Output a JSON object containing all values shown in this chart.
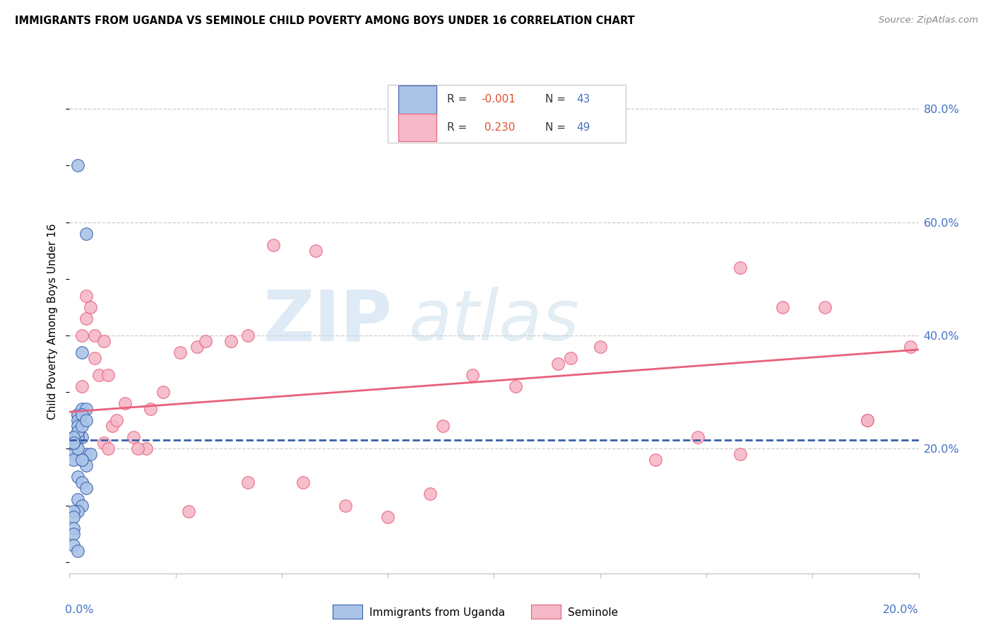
{
  "title": "IMMIGRANTS FROM UGANDA VS SEMINOLE CHILD POVERTY AMONG BOYS UNDER 16 CORRELATION CHART",
  "source": "Source: ZipAtlas.com",
  "ylabel": "Child Poverty Among Boys Under 16",
  "xlim": [
    0.0,
    0.2
  ],
  "ylim": [
    -0.02,
    0.87
  ],
  "yticks": [
    0.0,
    0.2,
    0.4,
    0.6,
    0.8
  ],
  "ytick_labels": [
    "",
    "20.0%",
    "40.0%",
    "60.0%",
    "80.0%"
  ],
  "color_blue": "#aac4e8",
  "color_pink": "#f5b8c8",
  "line_blue": "#3a5faa",
  "line_pink": "#e8607a",
  "uganda_x": [
    0.002,
    0.004,
    0.003,
    0.002,
    0.003,
    0.004,
    0.005,
    0.003,
    0.002,
    0.002,
    0.001,
    0.001,
    0.002,
    0.002,
    0.003,
    0.004,
    0.003,
    0.002,
    0.001,
    0.001,
    0.001,
    0.002,
    0.003,
    0.004,
    0.002,
    0.003,
    0.002,
    0.001,
    0.001,
    0.001,
    0.004,
    0.003,
    0.002,
    0.001,
    0.001,
    0.002,
    0.001,
    0.001,
    0.003,
    0.004,
    0.001,
    0.001,
    0.002
  ],
  "uganda_y": [
    0.7,
    0.58,
    0.37,
    0.26,
    0.22,
    0.19,
    0.19,
    0.18,
    0.22,
    0.23,
    0.21,
    0.21,
    0.22,
    0.25,
    0.27,
    0.27,
    0.26,
    0.24,
    0.21,
    0.19,
    0.18,
    0.15,
    0.14,
    0.13,
    0.11,
    0.1,
    0.09,
    0.09,
    0.08,
    0.06,
    0.17,
    0.18,
    0.2,
    0.21,
    0.22,
    0.23,
    0.22,
    0.21,
    0.24,
    0.25,
    0.05,
    0.03,
    0.02
  ],
  "seminole_x": [
    0.002,
    0.003,
    0.004,
    0.005,
    0.006,
    0.007,
    0.008,
    0.009,
    0.01,
    0.011,
    0.015,
    0.018,
    0.022,
    0.026,
    0.03,
    0.038,
    0.042,
    0.048,
    0.055,
    0.065,
    0.075,
    0.085,
    0.095,
    0.105,
    0.115,
    0.125,
    0.138,
    0.148,
    0.158,
    0.168,
    0.178,
    0.188,
    0.198,
    0.003,
    0.006,
    0.009,
    0.013,
    0.019,
    0.028,
    0.042,
    0.058,
    0.088,
    0.118,
    0.158,
    0.188,
    0.004,
    0.008,
    0.016,
    0.032
  ],
  "seminole_y": [
    0.26,
    0.31,
    0.47,
    0.45,
    0.36,
    0.33,
    0.21,
    0.2,
    0.24,
    0.25,
    0.22,
    0.2,
    0.3,
    0.37,
    0.38,
    0.39,
    0.4,
    0.56,
    0.14,
    0.1,
    0.08,
    0.12,
    0.33,
    0.31,
    0.35,
    0.38,
    0.18,
    0.22,
    0.19,
    0.45,
    0.45,
    0.25,
    0.38,
    0.4,
    0.4,
    0.33,
    0.28,
    0.27,
    0.09,
    0.14,
    0.55,
    0.24,
    0.36,
    0.52,
    0.25,
    0.43,
    0.39,
    0.2,
    0.39
  ],
  "uganda_trend_x": [
    0.0,
    0.2
  ],
  "uganda_trend_y": [
    0.215,
    0.215
  ],
  "seminole_trend_x": [
    0.0,
    0.2
  ],
  "seminole_trend_y": [
    0.265,
    0.375
  ]
}
